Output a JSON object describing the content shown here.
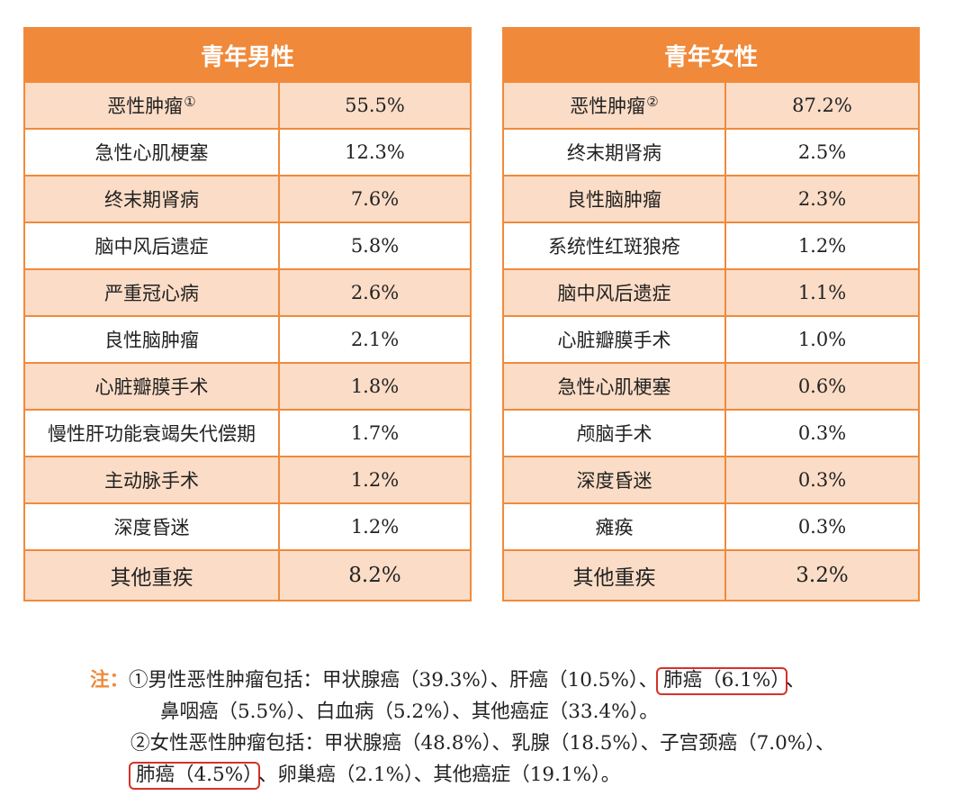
{
  "male_table": {
    "header": "青年男性",
    "rows": [
      {
        "name": "恶性肿瘤",
        "sup": "①",
        "value": "55.5%"
      },
      {
        "name": "急性心肌梗塞",
        "sup": "",
        "value": "12.3%"
      },
      {
        "name": "终末期肾病",
        "sup": "",
        "value": "7.6%"
      },
      {
        "name": "脑中风后遗症",
        "sup": "",
        "value": "5.8%"
      },
      {
        "name": "严重冠心病",
        "sup": "",
        "value": "2.6%"
      },
      {
        "name": "良性脑肿瘤",
        "sup": "",
        "value": "2.1%"
      },
      {
        "name": "心脏瓣膜手术",
        "sup": "",
        "value": "1.8%"
      },
      {
        "name": "慢性肝功能衰竭失代偿期",
        "sup": "",
        "value": "1.7%"
      },
      {
        "name": "主动脉手术",
        "sup": "",
        "value": "1.2%"
      },
      {
        "name": "深度昏迷",
        "sup": "",
        "value": "1.2%"
      },
      {
        "name": "其他重疾",
        "sup": "",
        "value": "8.2%"
      }
    ]
  },
  "female_table": {
    "header": "青年女性",
    "rows": [
      {
        "name": "恶性肿瘤",
        "sup": "②",
        "value": "87.2%"
      },
      {
        "name": "终末期肾病",
        "sup": "",
        "value": "2.5%"
      },
      {
        "name": "良性脑肿瘤",
        "sup": "",
        "value": "2.3%"
      },
      {
        "name": "系统性红斑狼疮",
        "sup": "",
        "value": "1.2%"
      },
      {
        "name": "脑中风后遗症",
        "sup": "",
        "value": "1.1%"
      },
      {
        "name": "心脏瓣膜手术",
        "sup": "",
        "value": "1.0%"
      },
      {
        "name": "急性心肌梗塞",
        "sup": "",
        "value": "0.6%"
      },
      {
        "name": "颅脑手术",
        "sup": "",
        "value": "0.3%"
      },
      {
        "name": "深度昏迷",
        "sup": "",
        "value": "0.3%"
      },
      {
        "name": "瘫痪",
        "sup": "",
        "value": "0.3%"
      },
      {
        "name": "其他重疾",
        "sup": "",
        "value": "3.2%"
      }
    ]
  },
  "notes": {
    "prefix": "注：",
    "male_line1_a": "①男性恶性肿瘤包括：甲状腺癌（39.3%）、肝癌（10.5%）、",
    "male_line1_hl": "肺癌（6.1%）",
    "male_line1_b": "、",
    "male_line2": "鼻咽癌（5.5%）、白血病（5.2%）、其他癌症（33.4%）。",
    "female_line1": "②女性恶性肿瘤包括：甲状腺癌（48.8%）、乳腺（18.5%）、子宫颈癌（7.0%）、",
    "female_line2_hl": "肺癌（4.5%）",
    "female_line2_b": "、卵巢癌（2.1%）、其他癌症（19.1%）。"
  },
  "colors": {
    "accent": "#f08a3c",
    "row_shade": "#fbdcc6",
    "highlight_box": "#d6312a"
  }
}
